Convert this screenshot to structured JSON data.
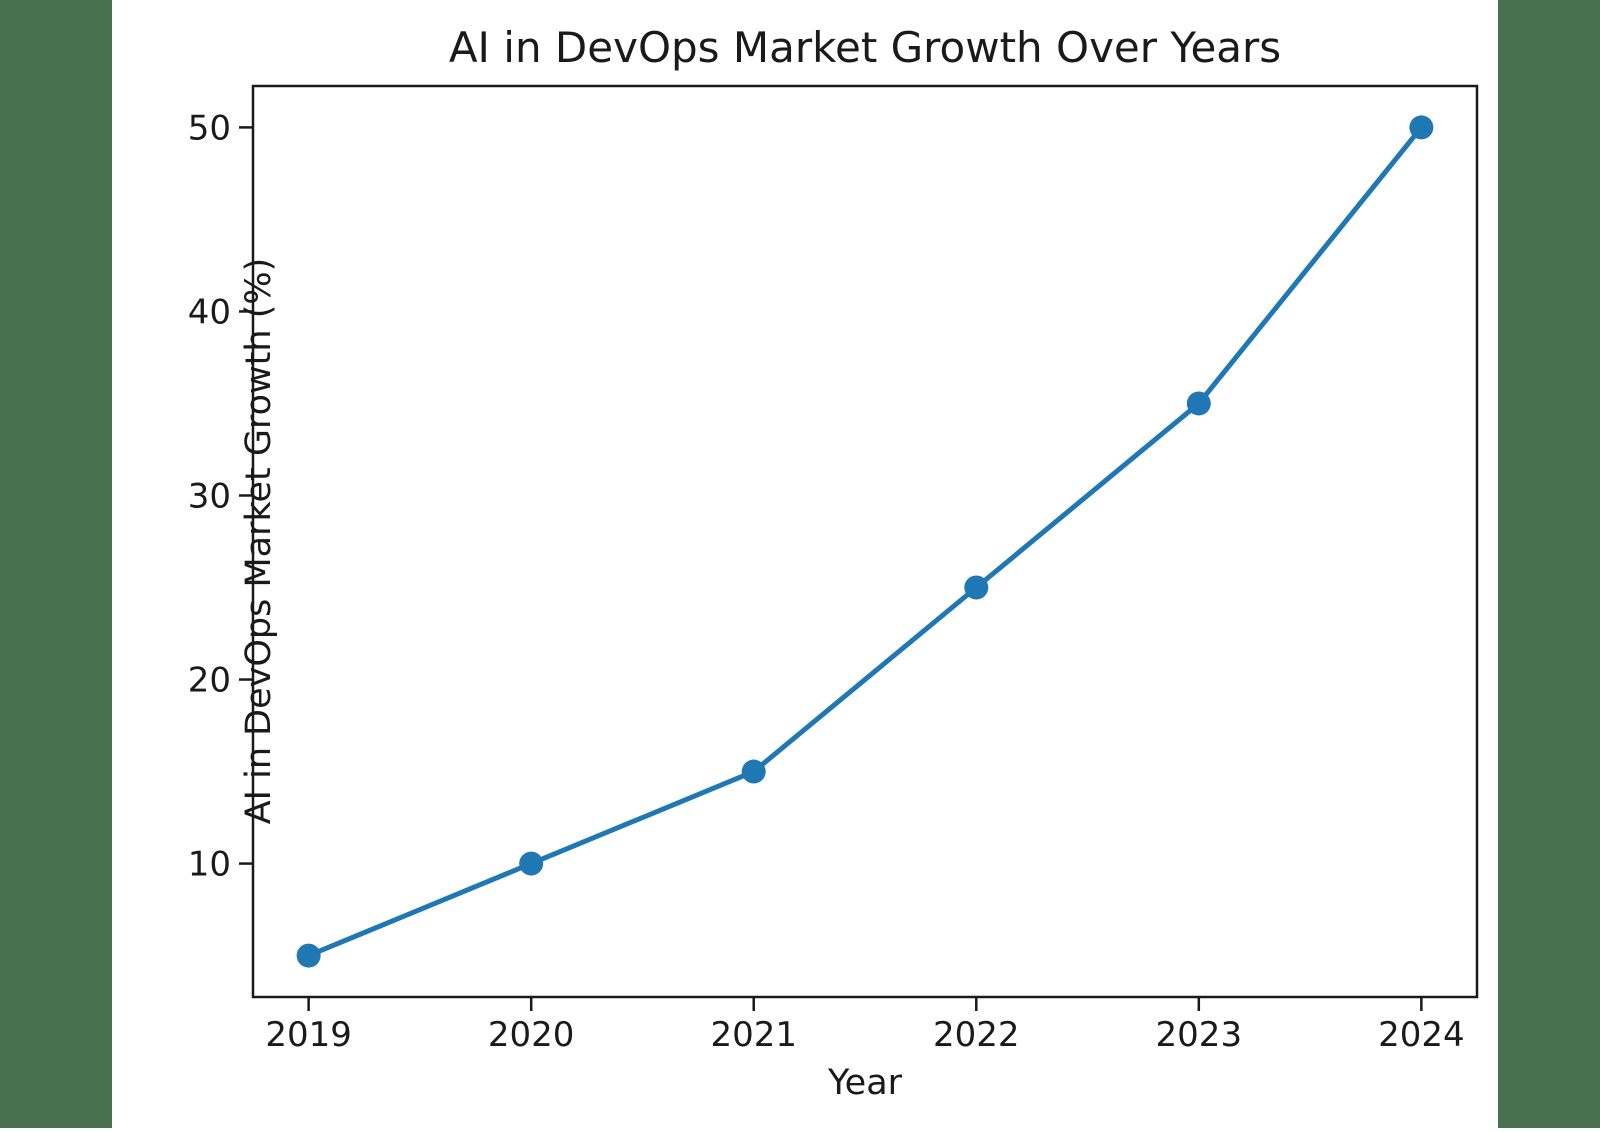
{
  "figure": {
    "page_background": "#47704f",
    "figure_background": "#ffffff",
    "spine_color": "#1a1a1a",
    "text_color": "#1a1a1a"
  },
  "chart_data": {
    "type": "line",
    "title": "AI in DevOps Market Growth Over Years",
    "xlabel": "Year",
    "ylabel": "AI in DevOps Market Growth (%)",
    "x": [
      2019,
      2020,
      2021,
      2022,
      2023,
      2024
    ],
    "series": [
      {
        "name": "AI in DevOps Market Growth (%)",
        "values": [
          5,
          10,
          15,
          25,
          35,
          50
        ]
      }
    ],
    "xtick_labels": [
      "2019",
      "2020",
      "2021",
      "2022",
      "2023",
      "2024"
    ],
    "ytick_values": [
      10,
      20,
      30,
      40,
      50
    ],
    "xlim": [
      2018.75,
      2024.25
    ],
    "ylim": [
      2.75,
      52.25
    ],
    "grid": false,
    "legend_position": "none",
    "line_color": "#1f77b4",
    "marker": "circle",
    "marker_color": "#1f77b4"
  }
}
